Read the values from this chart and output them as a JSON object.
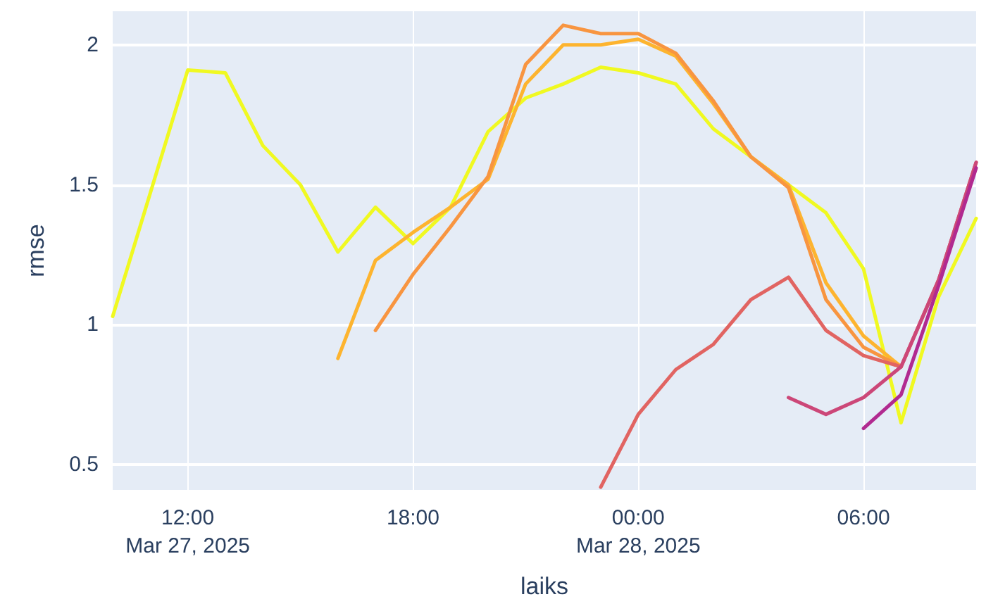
{
  "chart_data": {
    "type": "line",
    "xlabel": "laiks",
    "ylabel": "rmse",
    "xlim": [
      "2025-03-27T10:00",
      "2025-03-28T09:00"
    ],
    "ylim": [
      0.41,
      2.12
    ],
    "xticks": [
      {
        "value": "2025-03-27T12:00",
        "label": "12:00\nMar 27, 2025"
      },
      {
        "value": "2025-03-27T18:00",
        "label": "18:00"
      },
      {
        "value": "2025-03-28T00:00",
        "label": "00:00\nMar 28, 2025"
      },
      {
        "value": "2025-03-28T06:00",
        "label": "06:00"
      }
    ],
    "yticks": [
      0.5,
      1,
      1.5,
      2
    ],
    "grid": true,
    "series": [
      {
        "color": "#f0f921",
        "x": [
          "2025-03-27T10:00",
          "2025-03-27T12:00",
          "2025-03-27T13:00",
          "2025-03-27T14:00",
          "2025-03-27T15:00",
          "2025-03-27T16:00",
          "2025-03-27T17:00",
          "2025-03-27T18:00",
          "2025-03-27T19:00",
          "2025-03-27T20:00",
          "2025-03-27T21:00",
          "2025-03-27T22:00",
          "2025-03-27T23:00",
          "2025-03-28T00:00",
          "2025-03-28T01:00",
          "2025-03-28T02:00",
          "2025-03-28T03:00",
          "2025-03-28T04:00",
          "2025-03-28T05:00",
          "2025-03-28T06:00",
          "2025-03-28T07:00",
          "2025-03-28T08:00",
          "2025-03-28T09:00"
        ],
        "values": [
          1.03,
          1.91,
          1.9,
          1.64,
          1.5,
          1.26,
          1.42,
          1.29,
          1.42,
          1.69,
          1.81,
          1.86,
          1.92,
          1.9,
          1.86,
          1.7,
          1.6,
          1.5,
          1.4,
          1.2,
          0.65,
          1.1,
          1.38
        ]
      },
      {
        "color": "#fdb42f",
        "x": [
          "2025-03-27T16:00",
          "2025-03-27T17:00",
          "2025-03-27T18:00",
          "2025-03-27T19:00",
          "2025-03-27T20:00",
          "2025-03-27T21:00",
          "2025-03-27T22:00",
          "2025-03-27T23:00",
          "2025-03-28T00:00",
          "2025-03-28T01:00",
          "2025-03-28T02:00",
          "2025-03-28T03:00",
          "2025-03-28T04:00",
          "2025-03-28T05:00",
          "2025-03-28T06:00",
          "2025-03-28T07:00"
        ],
        "values": [
          0.88,
          1.23,
          1.33,
          1.42,
          1.52,
          1.86,
          2.0,
          2.0,
          2.02,
          1.96,
          1.79,
          1.6,
          1.5,
          1.15,
          0.96,
          0.85
        ]
      },
      {
        "color": "#f89540",
        "x": [
          "2025-03-27T17:00",
          "2025-03-27T18:00",
          "2025-03-27T19:00",
          "2025-03-27T20:00",
          "2025-03-27T21:00",
          "2025-03-27T22:00",
          "2025-03-27T23:00",
          "2025-03-28T00:00",
          "2025-03-28T01:00",
          "2025-03-28T02:00",
          "2025-03-28T03:00",
          "2025-03-28T04:00",
          "2025-03-28T05:00",
          "2025-03-28T06:00",
          "2025-03-28T07:00"
        ],
        "values": [
          0.98,
          1.18,
          1.35,
          1.53,
          1.93,
          2.07,
          2.04,
          2.04,
          1.97,
          1.8,
          1.6,
          1.49,
          1.09,
          0.92,
          0.85
        ]
      },
      {
        "color": "#e16462",
        "x": [
          "2025-03-27T23:00",
          "2025-03-28T00:00",
          "2025-03-28T01:00",
          "2025-03-28T02:00",
          "2025-03-28T03:00",
          "2025-03-28T04:00",
          "2025-03-28T05:00",
          "2025-03-28T06:00",
          "2025-03-28T07:00",
          "2025-03-28T08:00",
          "2025-03-28T09:00"
        ],
        "values": [
          0.42,
          0.68,
          0.84,
          0.93,
          1.09,
          1.17,
          0.98,
          0.89,
          0.85,
          1.16,
          1.58
        ]
      },
      {
        "color": "#cc4778",
        "x": [
          "2025-03-28T04:00",
          "2025-03-28T05:00",
          "2025-03-28T06:00",
          "2025-03-28T07:00",
          "2025-03-28T08:00",
          "2025-03-28T09:00"
        ],
        "values": [
          0.74,
          0.68,
          0.74,
          0.85,
          1.16,
          1.58
        ]
      },
      {
        "color": "#b12a90",
        "x": [
          "2025-03-28T06:00",
          "2025-03-28T07:00",
          "2025-03-28T08:00",
          "2025-03-28T09:00"
        ],
        "values": [
          0.63,
          0.75,
          1.14,
          1.56
        ]
      }
    ]
  }
}
